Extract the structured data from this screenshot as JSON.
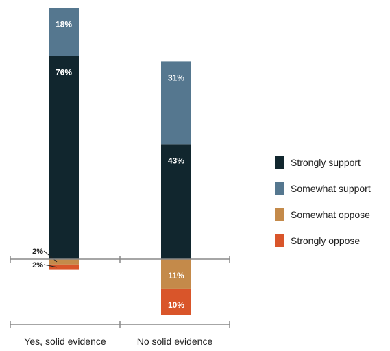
{
  "chart_data": {
    "type": "bar",
    "stacked": "diverging",
    "categories": [
      "Yes, solid evidence",
      "No solid evidence"
    ],
    "series": [
      {
        "name": "Strongly support",
        "values": [
          76,
          43
        ],
        "labels": [
          "76%",
          "43%"
        ],
        "color": "#11262e"
      },
      {
        "name": "Somewhat support",
        "values": [
          18,
          31
        ],
        "labels": [
          "18%",
          "31%"
        ],
        "color": "#55778f"
      },
      {
        "name": "Somewhat oppose",
        "values": [
          2,
          11
        ],
        "labels": [
          "2%",
          "11%"
        ],
        "color": "#c48a4a"
      },
      {
        "name": "Strongly oppose",
        "values": [
          2,
          10
        ],
        "labels": [
          "2%",
          "10%"
        ],
        "color": "#d9552a"
      }
    ],
    "legend": {
      "position": "right"
    },
    "grid": false
  }
}
